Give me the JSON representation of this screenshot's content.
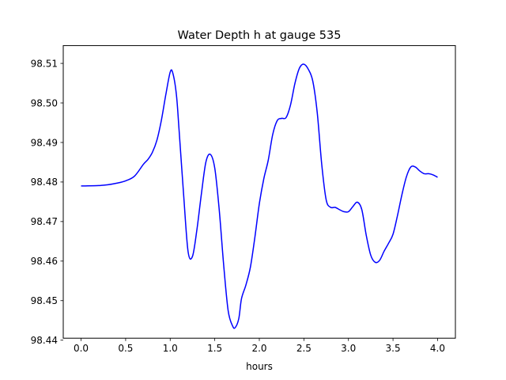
{
  "chart_data": {
    "type": "line",
    "title": "Water Depth h at gauge 535",
    "xlabel": "hours",
    "ylabel": "",
    "xlim": [
      -0.2,
      4.2
    ],
    "ylim": [
      98.4405,
      98.5145
    ],
    "xticks": [
      0.0,
      0.5,
      1.0,
      1.5,
      2.0,
      2.5,
      3.0,
      3.5,
      4.0
    ],
    "xtick_labels": [
      "0.0",
      "0.5",
      "1.0",
      "1.5",
      "2.0",
      "2.5",
      "3.0",
      "3.5",
      "4.0"
    ],
    "yticks": [
      98.44,
      98.45,
      98.46,
      98.47,
      98.48,
      98.49,
      98.5,
      98.51
    ],
    "ytick_labels": [
      "98.44",
      "98.45",
      "98.46",
      "98.47",
      "98.48",
      "98.49",
      "98.50",
      "98.51"
    ],
    "grid": false,
    "series": [
      {
        "color": "#0000ff",
        "x": [
          0.0,
          0.2,
          0.3,
          0.4,
          0.5,
          0.6,
          0.7,
          0.75,
          0.8,
          0.85,
          0.9,
          0.95,
          1.0,
          1.03,
          1.07,
          1.1,
          1.15,
          1.2,
          1.25,
          1.3,
          1.35,
          1.4,
          1.45,
          1.5,
          1.55,
          1.6,
          1.65,
          1.7,
          1.73,
          1.77,
          1.8,
          1.85,
          1.9,
          1.95,
          2.0,
          2.05,
          2.1,
          2.15,
          2.2,
          2.25,
          2.3,
          2.35,
          2.4,
          2.45,
          2.5,
          2.55,
          2.6,
          2.65,
          2.7,
          2.75,
          2.8,
          2.85,
          2.9,
          2.95,
          3.0,
          3.05,
          3.1,
          3.15,
          3.2,
          3.25,
          3.3,
          3.35,
          3.4,
          3.45,
          3.5,
          3.55,
          3.6,
          3.65,
          3.7,
          3.75,
          3.8,
          3.85,
          3.9,
          3.95,
          4.0
        ],
        "y": [
          98.479,
          98.4791,
          98.4793,
          98.4797,
          98.4803,
          98.4815,
          98.4845,
          98.4857,
          98.4875,
          98.4905,
          98.4955,
          98.502,
          98.5078,
          98.5075,
          98.502,
          98.493,
          98.477,
          98.4625,
          98.4612,
          98.468,
          98.477,
          98.485,
          98.487,
          98.4835,
          98.473,
          98.459,
          98.4475,
          98.4436,
          98.4432,
          98.4455,
          98.4505,
          98.454,
          98.4585,
          98.466,
          98.4745,
          98.4808,
          98.4855,
          98.492,
          98.4955,
          98.4961,
          98.4963,
          98.4995,
          98.505,
          98.5088,
          98.5098,
          98.5085,
          98.5055,
          98.4975,
          98.4845,
          98.4755,
          98.4736,
          98.4736,
          98.473,
          98.4725,
          98.4725,
          98.4738,
          98.4749,
          98.473,
          98.4665,
          98.4615,
          98.4597,
          98.4602,
          98.4625,
          98.4645,
          98.4668,
          98.4715,
          98.4768,
          98.4813,
          98.4838,
          98.4838,
          98.4828,
          98.4821,
          98.4821,
          98.4818,
          98.4812
        ]
      }
    ]
  }
}
